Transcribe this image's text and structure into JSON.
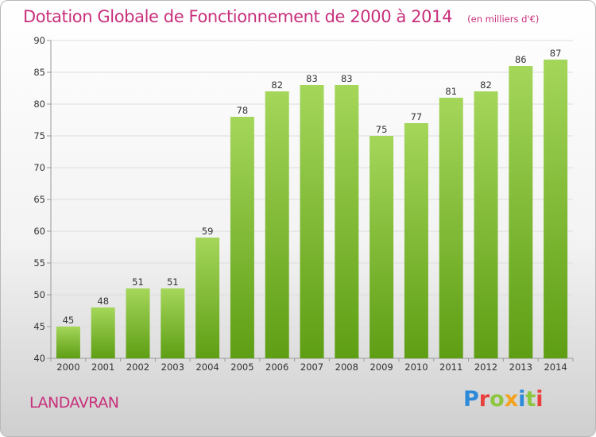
{
  "header": {
    "title": "Dotation Globale de Fonctionnement de 2000 à 2014",
    "unit": "(en milliers d'€)"
  },
  "footer": {
    "place": "LANDAVRAN",
    "logo_letters": [
      "P",
      "r",
      "o",
      "x",
      "i",
      "t",
      "i"
    ]
  },
  "colors": {
    "title": "#c8307c",
    "bar_top": "#a4d65a",
    "bar_bottom": "#5e9e14",
    "grid": "#dddddd",
    "axis": "#999999"
  },
  "chart_data": {
    "type": "bar",
    "title": "Dotation Globale de Fonctionnement de 2000 à 2014",
    "subtitle": "(en milliers d'€)",
    "xlabel": "",
    "ylabel": "",
    "categories": [
      "2000",
      "2001",
      "2002",
      "2003",
      "2004",
      "2005",
      "2006",
      "2007",
      "2008",
      "2009",
      "2010",
      "2011",
      "2012",
      "2013",
      "2014"
    ],
    "values": [
      45,
      48,
      51,
      51,
      59,
      78,
      82,
      83,
      83,
      75,
      77,
      81,
      82,
      86,
      87
    ],
    "ylim": [
      40,
      90
    ],
    "yticks": [
      40,
      45,
      50,
      55,
      60,
      65,
      70,
      75,
      80,
      85,
      90
    ],
    "grid": true,
    "legend": "none",
    "data_labels": true
  }
}
